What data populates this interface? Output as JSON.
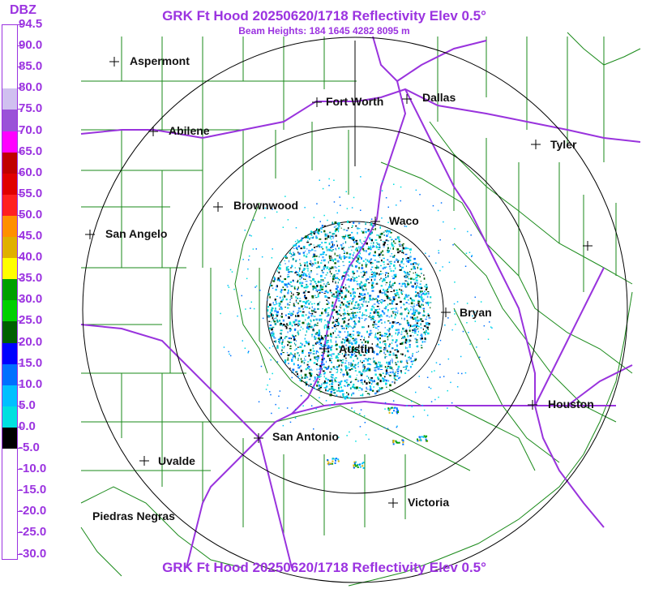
{
  "title": "GRK Ft Hood 20250620/1718 Reflectivity Elev 0.5°",
  "subtitle": "Beam Heights: 184 1645 4282 8095 m",
  "footer_title": "GRK Ft Hood 20250620/1718 Reflectivity Elev 0.5°",
  "legend": {
    "unit": "DBZ",
    "ticks": [
      "94.5",
      "90.0",
      "85.0",
      "80.0",
      "75.0",
      "70.0",
      "65.0",
      "60.0",
      "55.0",
      "50.0",
      "45.0",
      "40.0",
      "35.0",
      "30.0",
      "25.0",
      "20.0",
      "15.0",
      "10.0",
      "5.0",
      "0.0",
      "-5.0",
      "-10.0",
      "-15.0",
      "-20.0",
      "-25.0",
      "-30.0"
    ],
    "colors": {
      "94.5": "#ffffff",
      "90.0": "#ffffff",
      "85.0": "#ffffff",
      "80.0": "#ffffff",
      "75.0": "#d0c0f0",
      "70.0": "#9a52d8",
      "65.0": "#ff00ff",
      "60.0": "#c00000",
      "55.0": "#e00000",
      "50.0": "#ff2020",
      "45.0": "#ff9000",
      "40.0": "#e0b000",
      "35.0": "#ffff00",
      "30.0": "#00a000",
      "25.0": "#00d000",
      "20.0": "#006000",
      "15.0": "#0000ff",
      "10.0": "#0070ff",
      "5.0": "#00c0ff",
      "0.0": "#00e0e0",
      "-5.0": "#000000",
      "-10.0": "#ffffff",
      "-15.0": "#ffffff",
      "-20.0": "#ffffff",
      "-25.0": "#ffffff",
      "-30.0": "#ffffff"
    }
  },
  "map": {
    "range_rings": 3,
    "ring_color": "#000000",
    "county_line_color": "#1a8a1a",
    "highway_color": "#9933dd",
    "cities": [
      {
        "name": "Aspermont"
      },
      {
        "name": "Fort Worth"
      },
      {
        "name": "Dallas"
      },
      {
        "name": "Abilene"
      },
      {
        "name": "Tyler"
      },
      {
        "name": "Brownwood"
      },
      {
        "name": "Waco"
      },
      {
        "name": "San Angelo"
      },
      {
        "name": "Bryan"
      },
      {
        "name": "Austin"
      },
      {
        "name": "Houston"
      },
      {
        "name": "San Antonio"
      },
      {
        "name": "Uvalde"
      },
      {
        "name": "Victoria"
      },
      {
        "name": "Piedras Negras"
      }
    ]
  }
}
